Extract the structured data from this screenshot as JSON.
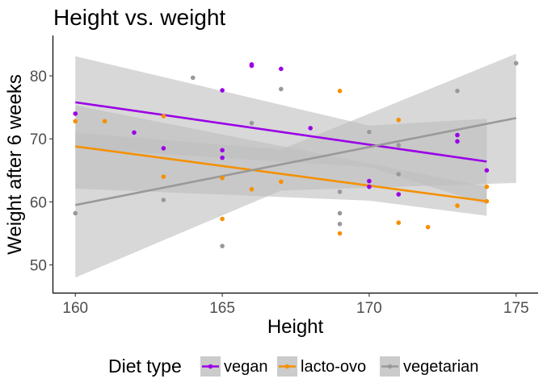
{
  "chart_data": {
    "type": "scatter",
    "title": "Height vs. weight",
    "xlabel": "Height",
    "ylabel": "Weight after 6 weeks",
    "xlim": [
      159.25,
      175.75
    ],
    "ylim": [
      45.6,
      86.4
    ],
    "x_ticks": [
      160,
      165,
      170,
      175
    ],
    "y_ticks": [
      50,
      60,
      70,
      80
    ],
    "grid": false,
    "legend": {
      "title": "Diet type",
      "position": "bottom"
    },
    "band_color": "#bebebe",
    "series": [
      {
        "name": "vegan",
        "color": "#9A00E6",
        "points": [
          [
            160,
            74
          ],
          [
            162,
            71
          ],
          [
            163,
            68.5
          ],
          [
            165,
            77.7
          ],
          [
            165,
            68.2
          ],
          [
            165,
            67
          ],
          [
            166,
            81.8
          ],
          [
            166,
            81.6
          ],
          [
            167,
            81.1
          ],
          [
            168,
            71.7
          ],
          [
            170,
            63.3
          ],
          [
            170,
            62.4
          ],
          [
            171,
            61.2
          ],
          [
            173,
            70.6
          ],
          [
            173,
            69.6
          ],
          [
            174,
            65
          ]
        ],
        "fit": {
          "start": [
            160,
            75.8
          ],
          "end": [
            174,
            66.4
          ]
        },
        "band": {
          "lower": [
            [
              160,
              68.5
            ],
            [
              170,
              65.5
            ],
            [
              174,
              59.6
            ]
          ],
          "upper": [
            [
              160,
              83.1
            ],
            [
              170,
              72.1
            ],
            [
              174,
              73.2
            ]
          ]
        }
      },
      {
        "name": "lacto-ovo",
        "color": "#F59000",
        "points": [
          [
            160,
            72.8
          ],
          [
            161,
            72.8
          ],
          [
            163,
            73.6
          ],
          [
            163,
            64
          ],
          [
            165,
            63.8
          ],
          [
            165,
            57.3
          ],
          [
            166,
            62
          ],
          [
            167,
            63.2
          ],
          [
            169,
            77.6
          ],
          [
            169,
            55
          ],
          [
            171,
            73
          ],
          [
            171,
            56.7
          ],
          [
            172,
            56
          ],
          [
            173,
            59.4
          ],
          [
            174,
            62.4
          ],
          [
            174,
            60.1
          ]
        ],
        "fit": {
          "start": [
            160,
            68.8
          ],
          "end": [
            174,
            60.1
          ]
        },
        "band": {
          "lower": [
            [
              160,
              62.1
            ],
            [
              170,
              60.2
            ],
            [
              174,
              57.8
            ]
          ],
          "upper": [
            [
              160,
              75.3
            ],
            [
              170,
              66.1
            ],
            [
              174,
              62.4
            ]
          ]
        }
      },
      {
        "name": "vegetarian",
        "color": "#999999",
        "points": [
          [
            160,
            58.2
          ],
          [
            163,
            60.3
          ],
          [
            164,
            79.7
          ],
          [
            165,
            53
          ],
          [
            166,
            72.5
          ],
          [
            167,
            77.9
          ],
          [
            169,
            61.6
          ],
          [
            169,
            58.2
          ],
          [
            169,
            56.5
          ],
          [
            170,
            71.1
          ],
          [
            171,
            69
          ],
          [
            171,
            64.4
          ],
          [
            173,
            77.6
          ],
          [
            175,
            82
          ]
        ],
        "fit": {
          "start": [
            160,
            59.5
          ],
          "end": [
            175,
            73.3
          ]
        },
        "band": {
          "lower": [
            [
              160,
              48
            ],
            [
              167,
              61.8
            ],
            [
              175,
              63
            ]
          ],
          "upper": [
            [
              160,
              71
            ],
            [
              167,
              68.3
            ],
            [
              175,
              83.5
            ]
          ]
        }
      }
    ]
  }
}
